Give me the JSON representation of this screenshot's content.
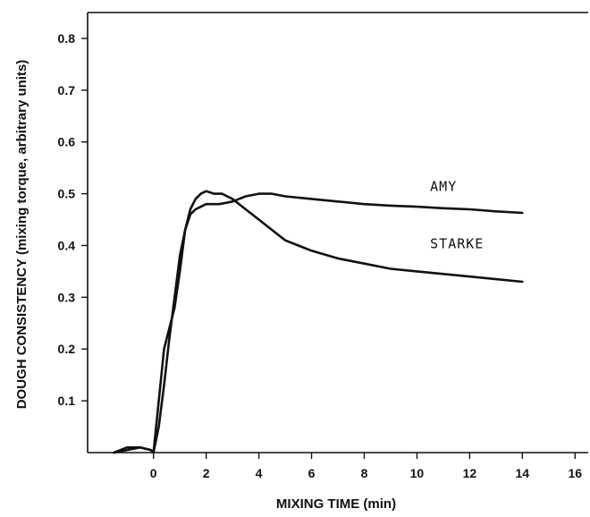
{
  "chart_data": {
    "type": "line",
    "xlabel": "MIXING TIME (min)",
    "ylabel": "DOUGH CONSISTENCY (mixing torque, arbitrary units)",
    "xlim": [
      -2.5,
      16.5
    ],
    "ylim": [
      0,
      0.85
    ],
    "xticks": [
      "0",
      "2",
      "4",
      "6",
      "8",
      "10",
      "12",
      "14",
      "16"
    ],
    "yticks": [
      "0.1",
      "0.2",
      "0.3",
      "0.4",
      "0.5",
      "0.6",
      "0.7",
      "0.8"
    ],
    "grid": false,
    "series": [
      {
        "name": "AMY",
        "x": [
          -1.5,
          -1.0,
          -0.5,
          -0.1,
          0.0,
          0.2,
          0.4,
          0.6,
          0.8,
          1.0,
          1.2,
          1.4,
          1.6,
          1.8,
          2.0,
          2.5,
          3.0,
          3.5,
          4.0,
          4.5,
          5.0,
          6.0,
          7.0,
          8.0,
          9.0,
          10.0,
          11.0,
          12.0,
          13.0,
          14.0
        ],
        "y": [
          0.0,
          0.01,
          0.01,
          0.005,
          0.0,
          0.05,
          0.13,
          0.22,
          0.3,
          0.38,
          0.43,
          0.46,
          0.47,
          0.475,
          0.48,
          0.48,
          0.485,
          0.495,
          0.5,
          0.5,
          0.495,
          0.49,
          0.485,
          0.48,
          0.477,
          0.475,
          0.472,
          0.47,
          0.466,
          0.463
        ]
      },
      {
        "name": "STARKE",
        "x": [
          -1.5,
          -1.0,
          -0.5,
          -0.1,
          0.0,
          0.2,
          0.4,
          0.6,
          0.8,
          1.0,
          1.2,
          1.4,
          1.6,
          1.8,
          2.0,
          2.3,
          2.6,
          3.0,
          3.5,
          4.0,
          4.5,
          5.0,
          5.5,
          6.0,
          7.0,
          8.0,
          9.0,
          10.0,
          11.0,
          12.0,
          13.0,
          14.0
        ],
        "y": [
          0.0,
          0.005,
          0.01,
          0.005,
          0.0,
          0.1,
          0.2,
          0.24,
          0.28,
          0.35,
          0.43,
          0.47,
          0.49,
          0.5,
          0.505,
          0.5,
          0.5,
          0.49,
          0.47,
          0.45,
          0.43,
          0.41,
          0.4,
          0.39,
          0.375,
          0.365,
          0.355,
          0.35,
          0.345,
          0.34,
          0.335,
          0.33
        ]
      }
    ],
    "annotations": [
      {
        "text": "AMY",
        "x": 10.5,
        "y": 0.505
      },
      {
        "text": "STARKE",
        "x": 10.5,
        "y": 0.395
      }
    ]
  }
}
